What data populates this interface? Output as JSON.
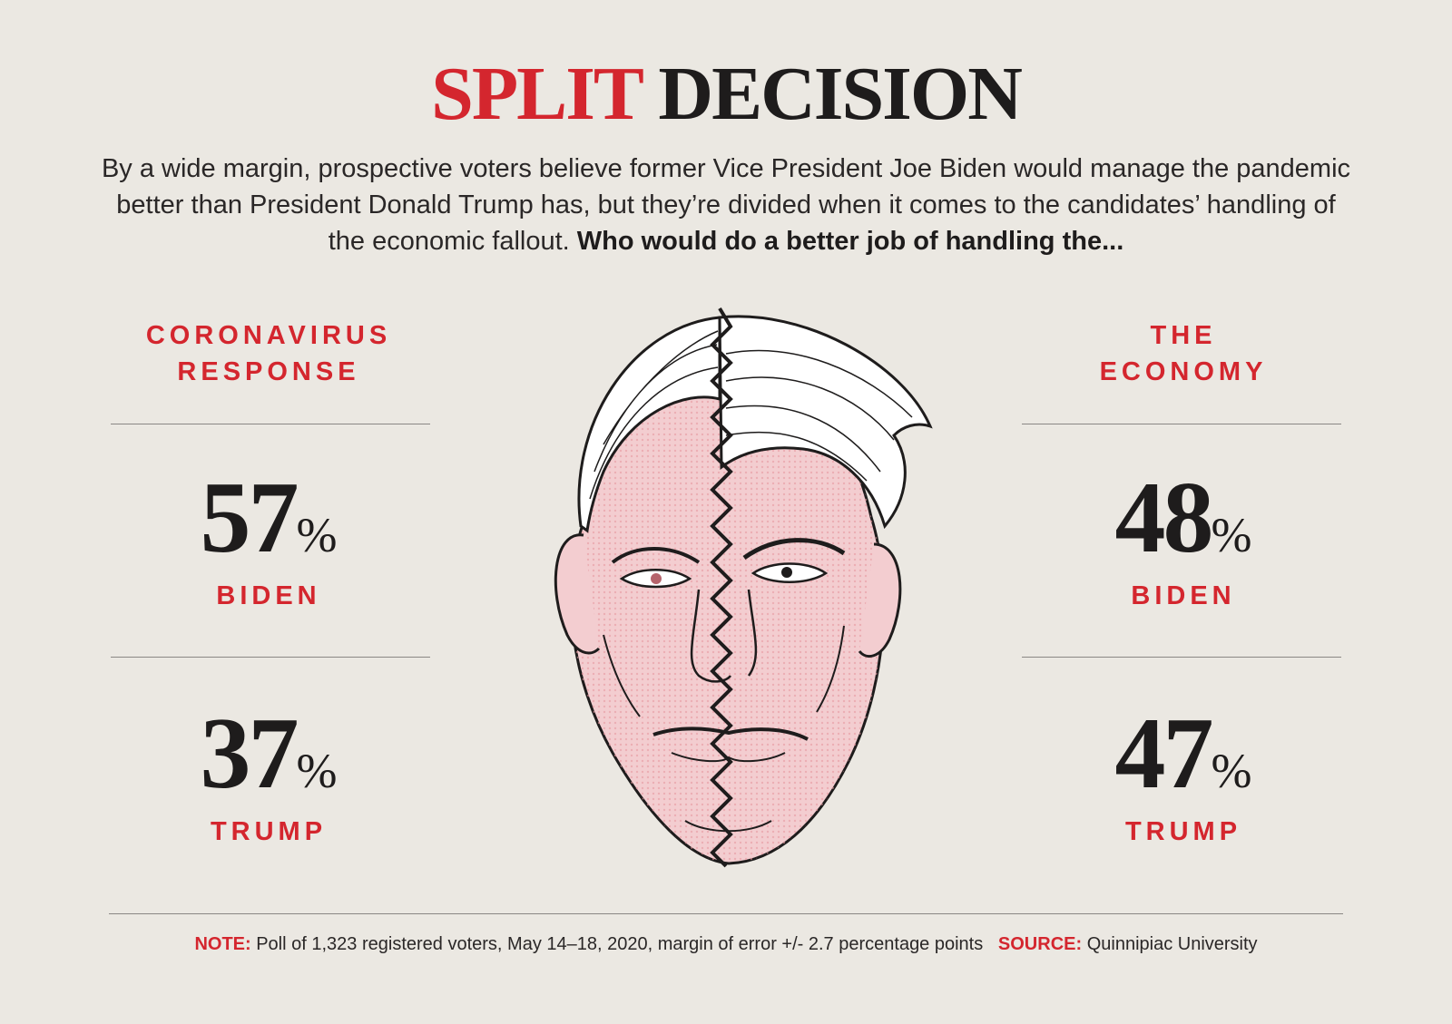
{
  "title": {
    "part1": "SPLIT",
    "part2": "DECISION"
  },
  "intro": {
    "text": "By a wide margin, prospective voters believe former Vice President Joe Biden would manage the pandemic better than President Donald Trump has, but they’re divided when it comes to the candidates’ handling of the economic fallout.",
    "question": "Who would do a better job of handling the..."
  },
  "sections": [
    {
      "title_line1": "CORONAVIRUS",
      "title_line2": "RESPONSE",
      "rows": [
        {
          "value": "57",
          "candidate": "BIDEN"
        },
        {
          "value": "37",
          "candidate": "TRUMP"
        }
      ]
    },
    {
      "title_line1": "THE",
      "title_line2": "ECONOMY",
      "rows": [
        {
          "value": "48",
          "candidate": "BIDEN"
        },
        {
          "value": "47",
          "candidate": "TRUMP"
        }
      ]
    }
  ],
  "percent_sign": "%",
  "footer": {
    "note_label": "NOTE:",
    "note_text": "Poll of 1,323 registered voters, May 14–18, 2020, margin of error +/- 2.7 percentage points",
    "source_label": "SOURCE:",
    "source_text": "Quinnipiac University"
  },
  "colors": {
    "accent": "#d4262e",
    "ink": "#1e1c1c",
    "paper": "#ebe8e2",
    "skin": "#f2c5c8"
  },
  "chart_data": {
    "type": "table",
    "title": "SPLIT DECISION",
    "question": "Who would do a better job of handling the...",
    "categories": [
      "CORONAVIRUS RESPONSE",
      "THE ECONOMY"
    ],
    "series": [
      {
        "name": "BIDEN",
        "values": [
          57,
          48
        ]
      },
      {
        "name": "TRUMP",
        "values": [
          37,
          47
        ]
      }
    ],
    "unit": "%"
  }
}
